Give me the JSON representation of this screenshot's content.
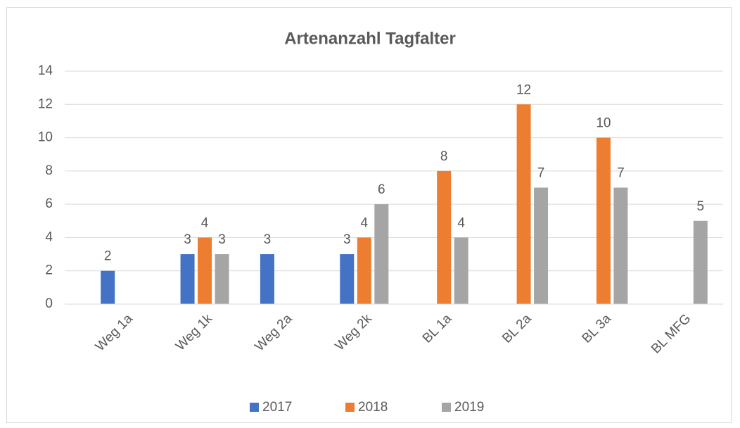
{
  "chart_data": {
    "type": "bar",
    "title": "Artenanzahl Tagfalter",
    "categories": [
      "Weg 1a",
      "Weg 1k",
      "Weg 2a",
      "Weg 2k",
      "BL 1a",
      "BL 2a",
      "BL 3a",
      "BL MFG"
    ],
    "series": [
      {
        "name": "2017",
        "color": "#4472c4",
        "values": [
          2,
          3,
          3,
          3,
          null,
          null,
          null,
          null
        ]
      },
      {
        "name": "2018",
        "color": "#ed7d31",
        "values": [
          null,
          4,
          null,
          4,
          8,
          12,
          10,
          null
        ]
      },
      {
        "name": "2019",
        "color": "#a5a5a5",
        "values": [
          null,
          3,
          null,
          6,
          4,
          7,
          7,
          5
        ]
      }
    ],
    "ylim": [
      0,
      14
    ],
    "yticks": [
      0,
      2,
      4,
      6,
      8,
      10,
      12,
      14
    ],
    "grid": true,
    "legend": "bottom"
  }
}
